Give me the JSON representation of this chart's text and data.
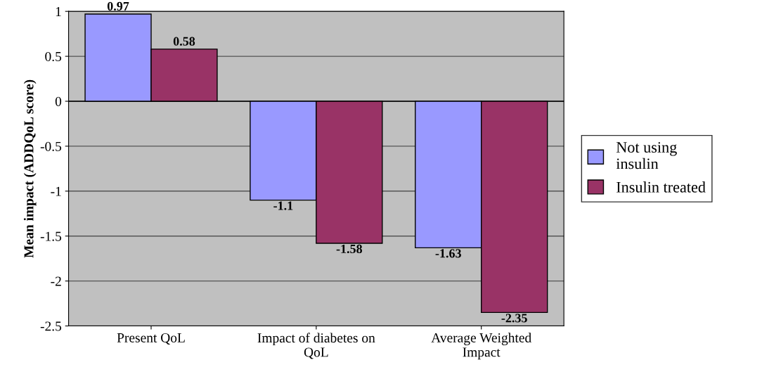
{
  "chart_data": {
    "type": "bar",
    "ylabel": "Mean impact (ADDQoL score)",
    "categories": [
      "Present QoL",
      "Impact of diabetes on\nQoL",
      "Average Weighted\nImpact"
    ],
    "series": [
      {
        "name": "Not using\ninsulin",
        "color": "#9999ff",
        "values": [
          0.97,
          -1.1,
          -1.63
        ]
      },
      {
        "name": "Insulin treated",
        "color": "#993366",
        "values": [
          0.58,
          -1.58,
          -2.35
        ]
      }
    ],
    "ylim": [
      -2.5,
      1
    ],
    "yticks": [
      -2.5,
      -2,
      -1.5,
      -1,
      -0.5,
      0,
      0.5,
      1
    ],
    "grid": "y",
    "legend": "right",
    "data_labels": true
  }
}
